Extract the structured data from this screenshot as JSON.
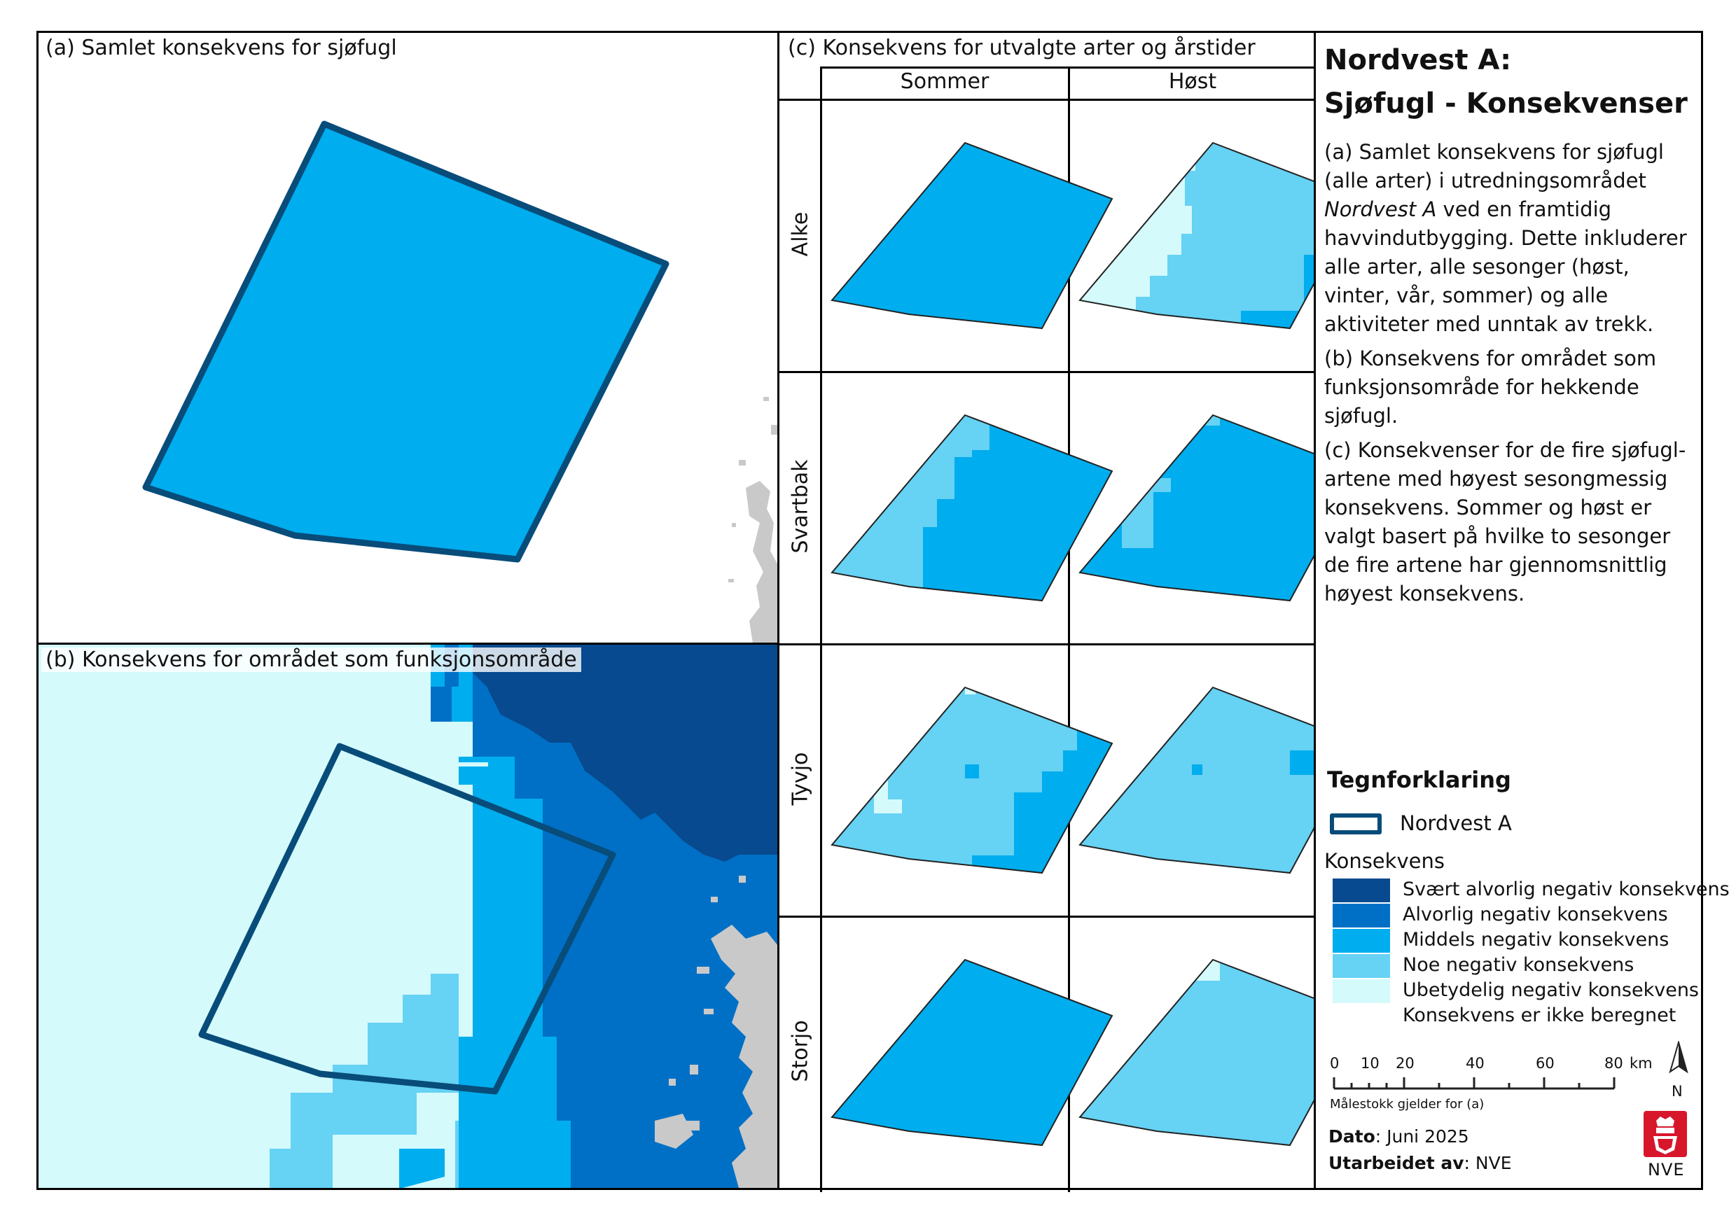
{
  "colors": {
    "frame": "#000000",
    "outline": "#084c7a",
    "very_severe": "#084a8f",
    "severe": "#0070c6",
    "medium": "#00adee",
    "some": "#66d2f4",
    "insignificant": "#d4fafc",
    "not_calculated": "#ffffff",
    "land": "#c9c9c9",
    "nve_red": "#d7162c"
  },
  "panel_a": {
    "label": "(a) Samlet konsekvens for sjøfugl"
  },
  "panel_b": {
    "label": "(b) Konsekvens for området som funksjonsområde"
  },
  "panel_c": {
    "label": "(c) Konsekvens for utvalgte arter og årstider",
    "columns": [
      "Sommer",
      "Høst"
    ],
    "rows": [
      "Alke",
      "Svartbak",
      "Tyvjo",
      "Storjo"
    ]
  },
  "title": {
    "line1": "Nordvest A:",
    "line2": "Sjøfugl - Konsekvenser"
  },
  "description": {
    "a_part1": "(a) Samlet konsekvens for sjøfugl (alle arter) i utredningsområdet ",
    "a_italic": "Nordvest A",
    "a_part2": " ved en framtidig havvindutbygging. Dette inkluderer alle arter, alle sesonger (høst, vinter, vår, sommer) og alle aktiviteter med unntak av trekk.",
    "b": "(b) Konsekvens for området som funksjonsområde for hekkende sjøfugl.",
    "c": "(c) Konsekvenser for de fire sjøfugl-artene med høyest sesongmessig konsekvens. Sommer og høst er valgt basert på hvilke to sesonger de fire artene har gjennomsnittlig høyest konsekvens."
  },
  "legend": {
    "title": "Tegnforklaring",
    "area_label": "Nordvest A",
    "konsekvens_title": "Konsekvens",
    "items": [
      {
        "label": "Svært alvorlig negativ konsekvens",
        "color": "#084a8f"
      },
      {
        "label": "Alvorlig negativ konsekvens",
        "color": "#0070c6"
      },
      {
        "label": "Middels negativ konsekvens",
        "color": "#00adee"
      },
      {
        "label": "Noe negativ konsekvens",
        "color": "#66d2f4"
      },
      {
        "label": "Ubetydelig negativ konsekvens",
        "color": "#d4fafc"
      },
      {
        "label": "Konsekvens er ikke beregnet",
        "color": "#ffffff"
      }
    ]
  },
  "scalebar": {
    "ticks": [
      "0",
      "10",
      "20",
      "40",
      "60",
      "80"
    ],
    "unit": "km",
    "note": "Målestokk gjelder for (a)"
  },
  "north_label": "N",
  "logo_text": "NVE",
  "info": {
    "date_label": "Dato",
    "date_value": ": Juni 2025",
    "author_label": "Utarbeidet av",
    "author_value": ": NVE"
  }
}
